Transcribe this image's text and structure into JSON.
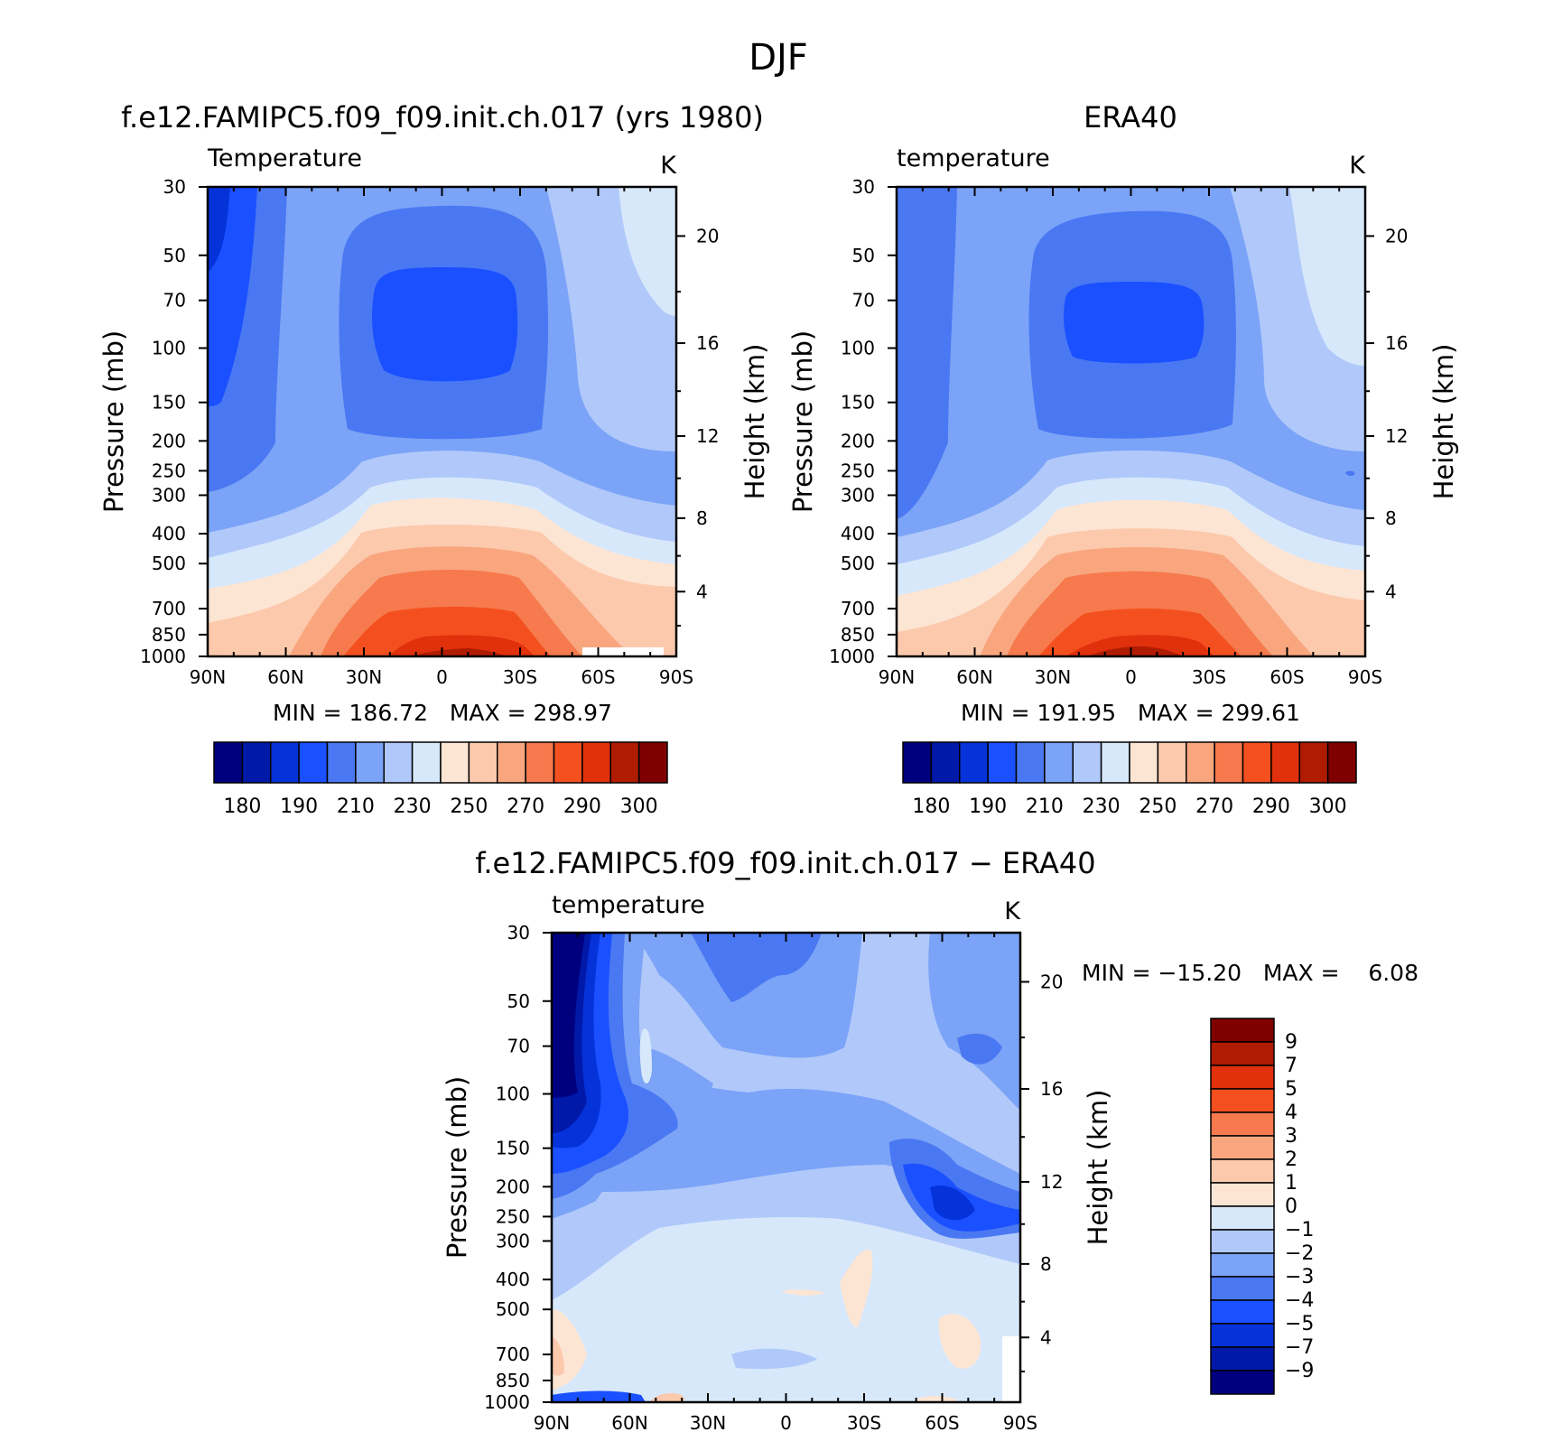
{
  "figure": {
    "title": "DJF",
    "panel_a_title": "f.e12.FAMIPC5.f09_f09.init.ch.017 (yrs 1980)",
    "panel_b_title": "ERA40",
    "panel_c_title": "f.e12.FAMIPC5.f09_f09.init.ch.017 − ERA40"
  },
  "chart_data": [
    {
      "id": "model",
      "type": "heatmap",
      "plot_type": "contour-fill latitude-pressure cross-section",
      "title": "f.e12.FAMIPC5.f09_f09.init.ch.017 (yrs 1980)",
      "subtitle_left": "Temperature",
      "subtitle_right": "K",
      "ylabel": "Pressure (mb)",
      "y2label": "Height (km)",
      "x_ticks": [
        "90N",
        "60N",
        "30N",
        "0",
        "30S",
        "60S",
        "90S"
      ],
      "y_ticks": [
        30,
        50,
        70,
        100,
        150,
        200,
        250,
        300,
        400,
        500,
        700,
        850,
        1000
      ],
      "y2_ticks": [
        20,
        16,
        12,
        8,
        4
      ],
      "xlim": [
        90,
        -90
      ],
      "ylim": [
        1000,
        30
      ],
      "stats_label": "MIN = 186.72   MAX = 298.97",
      "min": 186.72,
      "max": 298.97,
      "colorbar_labels": [
        "180",
        "190",
        "210",
        "230",
        "250",
        "270",
        "290",
        "300"
      ],
      "contour_levels": [
        180,
        185,
        190,
        200,
        210,
        220,
        230,
        240,
        250,
        260,
        270,
        280,
        290,
        295,
        300
      ],
      "colors": [
        "#00007f",
        "#0019a8",
        "#0533d9",
        "#1a50ff",
        "#4a78f2",
        "#7ba3f7",
        "#b0c9fa",
        "#d8e8fb",
        "#fde5d4",
        "#fcc9ac",
        "#f9a67f",
        "#f67a4d",
        "#f4501f",
        "#e0300c",
        "#b01c02",
        "#800000"
      ]
    },
    {
      "id": "obs",
      "type": "heatmap",
      "plot_type": "contour-fill latitude-pressure cross-section",
      "title": "ERA40",
      "subtitle_left": "temperature",
      "subtitle_right": "K",
      "ylabel": "Pressure (mb)",
      "y2label": "Height (km)",
      "x_ticks": [
        "90N",
        "60N",
        "30N",
        "0",
        "30S",
        "60S",
        "90S"
      ],
      "y_ticks": [
        30,
        50,
        70,
        100,
        150,
        200,
        250,
        300,
        400,
        500,
        700,
        850,
        1000
      ],
      "y2_ticks": [
        20,
        16,
        12,
        8,
        4
      ],
      "xlim": [
        90,
        -90
      ],
      "ylim": [
        1000,
        30
      ],
      "stats_label": "MIN = 191.95   MAX = 299.61",
      "min": 191.95,
      "max": 299.61,
      "colorbar_labels": [
        "180",
        "190",
        "210",
        "230",
        "250",
        "270",
        "290",
        "300"
      ],
      "contour_levels": [
        180,
        185,
        190,
        200,
        210,
        220,
        230,
        240,
        250,
        260,
        270,
        280,
        290,
        295,
        300
      ],
      "colors": [
        "#00007f",
        "#0019a8",
        "#0533d9",
        "#1a50ff",
        "#4a78f2",
        "#7ba3f7",
        "#b0c9fa",
        "#d8e8fb",
        "#fde5d4",
        "#fcc9ac",
        "#f9a67f",
        "#f67a4d",
        "#f4501f",
        "#e0300c",
        "#b01c02",
        "#800000"
      ]
    },
    {
      "id": "diff",
      "type": "heatmap",
      "plot_type": "contour-fill latitude-pressure difference",
      "title": "f.e12.FAMIPC5.f09_f09.init.ch.017 − ERA40",
      "subtitle_left": "temperature",
      "subtitle_right": "K",
      "ylabel": "Pressure (mb)",
      "y2label": "Height (km)",
      "x_ticks": [
        "90N",
        "60N",
        "30N",
        "0",
        "30S",
        "60S",
        "90S"
      ],
      "y_ticks": [
        30,
        50,
        70,
        100,
        150,
        200,
        250,
        300,
        400,
        500,
        700,
        850,
        1000
      ],
      "y2_ticks": [
        20,
        16,
        12,
        8,
        4
      ],
      "xlim": [
        90,
        -90
      ],
      "ylim": [
        1000,
        30
      ],
      "stats_label": "MIN = −15.20   MAX =    6.08",
      "min": -15.2,
      "max": 6.08,
      "colorbar_labels": [
        "9",
        "7",
        "5",
        "4",
        "3",
        "2",
        "1",
        "0",
        "−1",
        "−2",
        "−3",
        "−4",
        "−5",
        "−7",
        "−9"
      ],
      "contour_levels": [
        9,
        7,
        5,
        4,
        3,
        2,
        1,
        0,
        -1,
        -2,
        -3,
        -4,
        -5,
        -7,
        -9
      ],
      "colors": [
        "#800000",
        "#b01c02",
        "#e0300c",
        "#f4501f",
        "#f67a4d",
        "#f9a67f",
        "#fcc9ac",
        "#fde5d4",
        "#d8e8fb",
        "#b0c9fa",
        "#7ba3f7",
        "#4a78f2",
        "#1a50ff",
        "#0533d9",
        "#0019a8",
        "#00007f"
      ]
    }
  ]
}
